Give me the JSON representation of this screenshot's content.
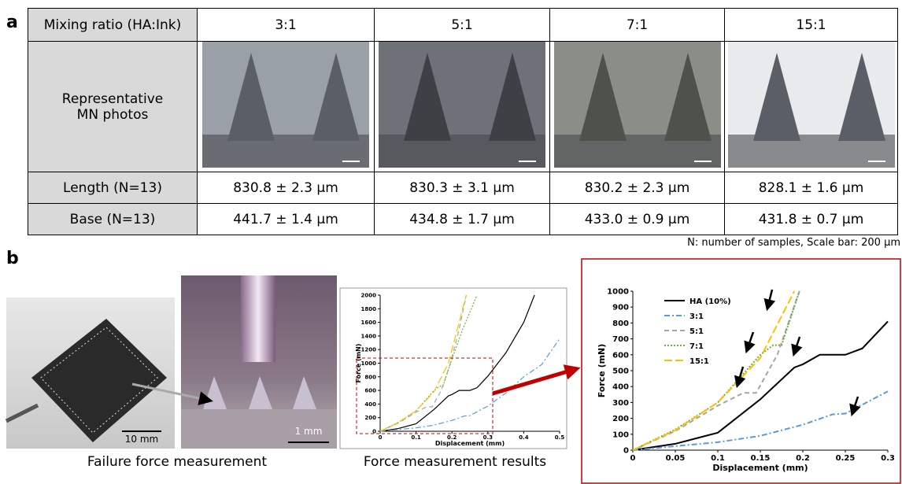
{
  "panel_a": {
    "label": "a",
    "table": {
      "header": [
        "Mixing ratio (HA:Ink)",
        "3:1",
        "5:1",
        "7:1",
        "15:1"
      ],
      "photo_row_label": "Representative MN photos",
      "rows": [
        [
          "Length (N=13)",
          "830.8 ± 2.3 µm",
          "830.3 ± 3.1 µm",
          "830.2 ± 2.3 µm",
          "828.1 ± 1.6 µm"
        ],
        [
          "Base (N=13)",
          "441.7 ± 1.4 µm",
          "434.8 ± 1.7 µm",
          "433.0 ± 0.9 µm",
          "431.8 ± 0.7 µm"
        ]
      ]
    },
    "note": "N: number of samples, Scale bar: 200 µm"
  },
  "panel_b": {
    "label": "b",
    "photo_scale_bars": [
      "10 mm",
      "1 mm"
    ],
    "photo_caption": "Failure force measurement",
    "results_caption": "Force measurement results",
    "charts": [
      {
        "type": "line",
        "xlabel": "Displacement (mm)",
        "ylabel": "Force (mN)",
        "xlim": [
          0,
          0.5
        ],
        "ylim": [
          0,
          2000
        ],
        "xticks": [
          0,
          0.1,
          0.2,
          0.3,
          0.4,
          0.5
        ],
        "yticks": [
          0,
          200,
          400,
          600,
          800,
          1000,
          1200,
          1400,
          1600,
          1800,
          2000
        ],
        "series": [
          {
            "color": "#000000",
            "dash": "solid",
            "x": [
              0,
              0.05,
              0.1,
              0.15,
              0.19,
              0.2,
              0.22,
              0.25,
              0.27,
              0.3,
              0.35,
              0.4,
              0.43
            ],
            "y": [
              0,
              40,
              110,
              320,
              520,
              540,
              600,
              600,
              640,
              810,
              1150,
              1600,
              2000
            ]
          },
          {
            "color": "#5b9bd5",
            "dash": "dashdot",
            "x": [
              0,
              0.05,
              0.1,
              0.15,
              0.2,
              0.235,
              0.25,
              0.3,
              0.35,
              0.4,
              0.45,
              0.5
            ],
            "y": [
              0,
              25,
              50,
              90,
              160,
              225,
              230,
              370,
              560,
              800,
              980,
              1360
            ]
          },
          {
            "color": "#a5a5a5",
            "dash": "dashed",
            "x": [
              0,
              0.05,
              0.1,
              0.13,
              0.145,
              0.17,
              0.196,
              0.22,
              0.24
            ],
            "y": [
              0,
              120,
              280,
              360,
              360,
              600,
              1000,
              1500,
              2000
            ]
          },
          {
            "color": "#70ad47",
            "dash": "dotted",
            "x": [
              0,
              0.05,
              0.1,
              0.15,
              0.165,
              0.175,
              0.196,
              0.23,
              0.27
            ],
            "y": [
              0,
              130,
              300,
              600,
              660,
              660,
              1000,
              1500,
              2000
            ]
          },
          {
            "color": "#ffc000",
            "dash": "longdash",
            "x": [
              0,
              0.05,
              0.1,
              0.15,
              0.19,
              0.21,
              0.24
            ],
            "y": [
              0,
              125,
              300,
              580,
              1000,
              1400,
              2000
            ]
          }
        ]
      },
      {
        "type": "line",
        "xlabel": "Displacement (mm)",
        "ylabel": "Force (mN)",
        "xlim": [
          0,
          0.3
        ],
        "ylim": [
          0,
          1000
        ],
        "xticks": [
          0,
          0.05,
          0.1,
          0.15,
          0.2,
          0.25,
          0.3
        ],
        "yticks": [
          0,
          100,
          200,
          300,
          400,
          500,
          600,
          700,
          800,
          900,
          1000
        ],
        "legend": "upper left",
        "series": [
          {
            "name": "HA (10%)",
            "color": "#000000",
            "dash": "solid",
            "x": [
              0,
              0.05,
              0.1,
              0.15,
              0.19,
              0.2,
              0.22,
              0.25,
              0.27,
              0.3
            ],
            "y": [
              0,
              40,
              110,
              320,
              520,
              540,
              600,
              600,
              640,
              810
            ]
          },
          {
            "name": "3:1",
            "color": "#5b9bd5",
            "dash": "dashdot",
            "x": [
              0,
              0.05,
              0.1,
              0.15,
              0.2,
              0.235,
              0.25,
              0.3
            ],
            "y": [
              0,
              25,
              50,
              90,
              160,
              225,
              230,
              370
            ]
          },
          {
            "name": "5:1",
            "color": "#a5a5a5",
            "dash": "dashed",
            "x": [
              0,
              0.05,
              0.1,
              0.13,
              0.145,
              0.17,
              0.196
            ],
            "y": [
              0,
              120,
              280,
              360,
              360,
              600,
              1000
            ]
          },
          {
            "name": "7:1",
            "color": "#70ad47",
            "dash": "dotted",
            "x": [
              0,
              0.05,
              0.1,
              0.15,
              0.165,
              0.175,
              0.196
            ],
            "y": [
              0,
              130,
              300,
              600,
              660,
              660,
              1000
            ]
          },
          {
            "name": "15:1",
            "color": "#ffc000",
            "dash": "longdash",
            "x": [
              0,
              0.05,
              0.1,
              0.15,
              0.19
            ],
            "y": [
              0,
              125,
              300,
              580,
              1000
            ]
          }
        ]
      }
    ]
  }
}
